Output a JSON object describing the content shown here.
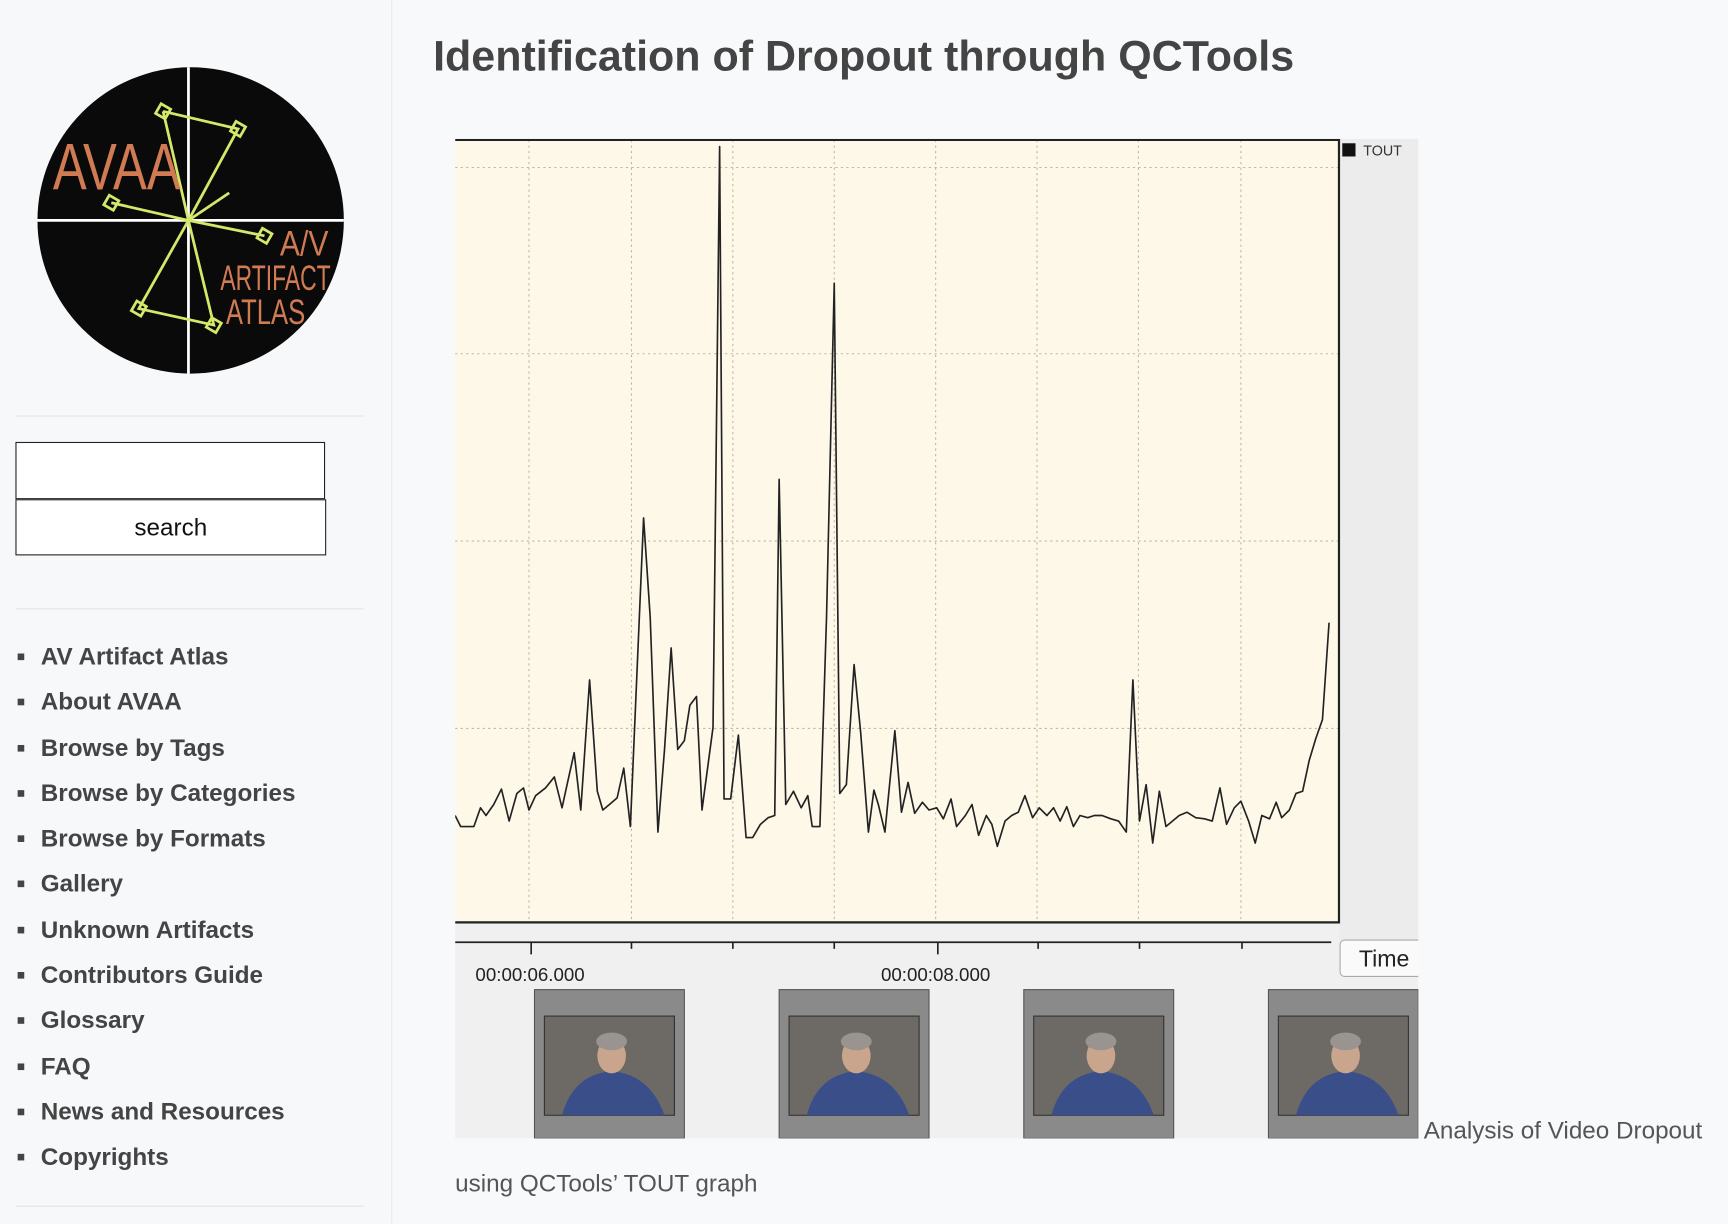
{
  "logo": {
    "title": "AVAA",
    "subtitle_lines": [
      "A/V",
      "ARTIFACT",
      "ATLAS"
    ]
  },
  "search": {
    "button": "search"
  },
  "nav": [
    "AV Artifact Atlas",
    "About AVAA",
    "Browse by Tags",
    "Browse by Categories",
    "Browse by Formats",
    "Gallery",
    "Unknown Artifacts",
    "Contributors Guide",
    "Glossary",
    "FAQ",
    "News and Resources",
    "Copyrights"
  ],
  "main": {
    "title": "Identification of Dropout through QCTools",
    "figure": {
      "legend": "TOUT",
      "time_labels": [
        "00:00:06.000",
        "00:00:08.000"
      ],
      "axis_button": "Time"
    },
    "caption": "Analysis of Video Dropout using QCTools’ TOUT graph"
  }
}
